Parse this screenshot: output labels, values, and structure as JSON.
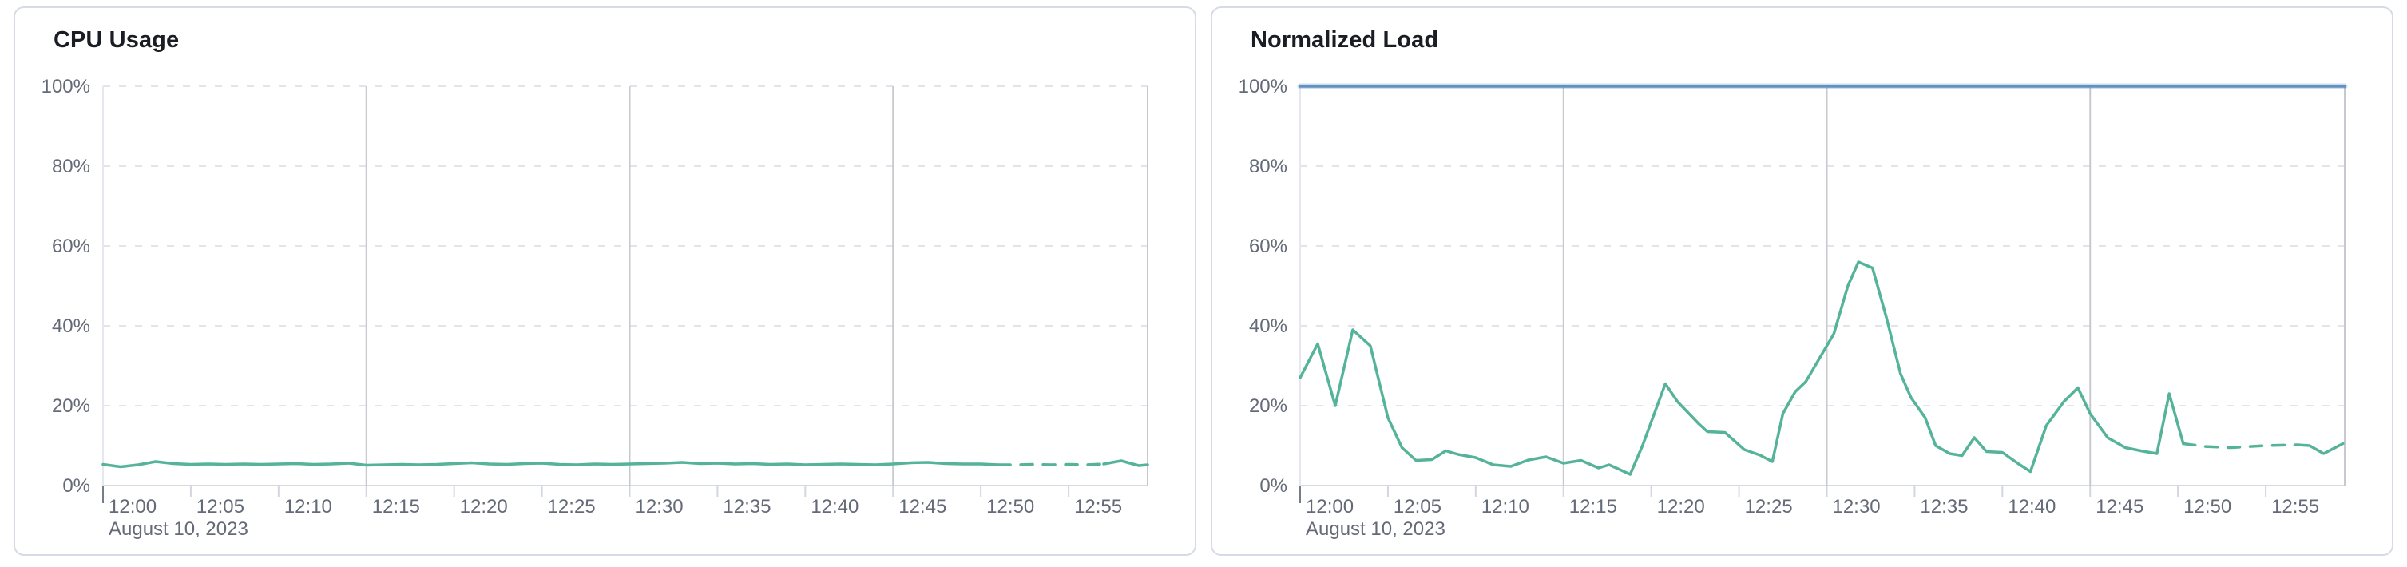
{
  "panels": [
    {
      "title": "CPU Usage"
    },
    {
      "title": "Normalized Load"
    }
  ],
  "chart_data": [
    {
      "type": "line",
      "title": "CPU Usage",
      "date_label": "August 10, 2023",
      "x_domain_minutes": [
        0,
        59.5
      ],
      "x_tick_minutes": [
        0,
        5,
        10,
        15,
        20,
        25,
        30,
        35,
        40,
        45,
        50,
        55
      ],
      "x_tick_labels": [
        "12:00",
        "12:05",
        "12:10",
        "12:15",
        "12:20",
        "12:25",
        "12:30",
        "12:35",
        "12:40",
        "12:45",
        "12:50",
        "12:55"
      ],
      "grid_vertical_minutes": [
        15,
        30,
        45
      ],
      "ylim": [
        0,
        100
      ],
      "y_ticks": [
        0,
        20,
        40,
        60,
        80,
        100
      ],
      "y_tick_suffix": "%",
      "grid": true,
      "legend": "none",
      "series": [
        {
          "name": "cpu-usage",
          "color": "#54b399",
          "dashed_from_minute": 51,
          "dashed_to_minute": 57,
          "points": [
            [
              0,
              5.3
            ],
            [
              1,
              4.7
            ],
            [
              2,
              5.2
            ],
            [
              3,
              6.0
            ],
            [
              4,
              5.5
            ],
            [
              5,
              5.3
            ],
            [
              6,
              5.4
            ],
            [
              7,
              5.3
            ],
            [
              8,
              5.4
            ],
            [
              9,
              5.3
            ],
            [
              10,
              5.4
            ],
            [
              11,
              5.5
            ],
            [
              12,
              5.3
            ],
            [
              13,
              5.4
            ],
            [
              14,
              5.6
            ],
            [
              15,
              5.1
            ],
            [
              16,
              5.2
            ],
            [
              17,
              5.3
            ],
            [
              18,
              5.2
            ],
            [
              19,
              5.3
            ],
            [
              20,
              5.5
            ],
            [
              21,
              5.7
            ],
            [
              22,
              5.4
            ],
            [
              23,
              5.3
            ],
            [
              24,
              5.5
            ],
            [
              25,
              5.6
            ],
            [
              26,
              5.3
            ],
            [
              27,
              5.2
            ],
            [
              28,
              5.4
            ],
            [
              29,
              5.3
            ],
            [
              30,
              5.4
            ],
            [
              31,
              5.5
            ],
            [
              32,
              5.6
            ],
            [
              33,
              5.8
            ],
            [
              34,
              5.5
            ],
            [
              35,
              5.6
            ],
            [
              36,
              5.4
            ],
            [
              37,
              5.5
            ],
            [
              38,
              5.3
            ],
            [
              39,
              5.4
            ],
            [
              40,
              5.2
            ],
            [
              41,
              5.3
            ],
            [
              42,
              5.4
            ],
            [
              43,
              5.3
            ],
            [
              44,
              5.2
            ],
            [
              45,
              5.4
            ],
            [
              46,
              5.7
            ],
            [
              47,
              5.8
            ],
            [
              48,
              5.5
            ],
            [
              49,
              5.4
            ],
            [
              50,
              5.4
            ],
            [
              51,
              5.2
            ],
            [
              52,
              5.2
            ],
            [
              53,
              5.3
            ],
            [
              54,
              5.2
            ],
            [
              55,
              5.3
            ],
            [
              56,
              5.2
            ],
            [
              57,
              5.4
            ],
            [
              58,
              6.2
            ],
            [
              59,
              5.0
            ],
            [
              59.5,
              5.2
            ]
          ]
        }
      ]
    },
    {
      "type": "line",
      "title": "Normalized Load",
      "date_label": "August 10, 2023",
      "x_domain_minutes": [
        0,
        59.5
      ],
      "x_tick_minutes": [
        0,
        5,
        10,
        15,
        20,
        25,
        30,
        35,
        40,
        45,
        50,
        55
      ],
      "x_tick_labels": [
        "12:00",
        "12:05",
        "12:10",
        "12:15",
        "12:20",
        "12:25",
        "12:30",
        "12:35",
        "12:40",
        "12:45",
        "12:50",
        "12:55"
      ],
      "grid_vertical_minutes": [
        15,
        30,
        45
      ],
      "ylim": [
        0,
        100
      ],
      "y_ticks": [
        0,
        20,
        40,
        60,
        80,
        100
      ],
      "y_tick_suffix": "%",
      "grid": true,
      "legend": "none",
      "series": [
        {
          "name": "load-limit",
          "color": "#6092c0",
          "halo": true,
          "points": [
            [
              0,
              100
            ],
            [
              59.5,
              100
            ]
          ]
        },
        {
          "name": "normalized-load",
          "color": "#54b399",
          "dashed_from_minute": 50.3,
          "dashed_to_minute": 56.8,
          "points": [
            [
              0,
              27
            ],
            [
              1,
              35.5
            ],
            [
              2,
              20
            ],
            [
              3,
              39
            ],
            [
              4,
              35
            ],
            [
              5,
              17
            ],
            [
              5.8,
              9.5
            ],
            [
              6.6,
              6.3
            ],
            [
              7.5,
              6.5
            ],
            [
              8.3,
              8.7
            ],
            [
              9,
              7.8
            ],
            [
              10,
              7
            ],
            [
              11,
              5.2
            ],
            [
              12,
              4.8
            ],
            [
              13,
              6.4
            ],
            [
              14,
              7.2
            ],
            [
              15,
              5.6
            ],
            [
              16,
              6.3
            ],
            [
              17,
              4.4
            ],
            [
              17.6,
              5.2
            ],
            [
              18.8,
              2.8
            ],
            [
              19.5,
              10
            ],
            [
              20.8,
              25.5
            ],
            [
              21.5,
              21
            ],
            [
              22.7,
              15.5
            ],
            [
              23.2,
              13.5
            ],
            [
              24.2,
              13.3
            ],
            [
              25.3,
              9
            ],
            [
              26.2,
              7.6
            ],
            [
              26.9,
              6
            ],
            [
              27.5,
              18
            ],
            [
              28.2,
              23.5
            ],
            [
              28.8,
              26
            ],
            [
              29.6,
              32
            ],
            [
              30.4,
              38
            ],
            [
              31.2,
              50
            ],
            [
              31.8,
              56
            ],
            [
              32.6,
              54.5
            ],
            [
              33.4,
              42
            ],
            [
              34.2,
              28
            ],
            [
              34.8,
              22
            ],
            [
              35.6,
              17
            ],
            [
              36.2,
              10
            ],
            [
              37,
              8
            ],
            [
              37.7,
              7.5
            ],
            [
              38.4,
              12
            ],
            [
              39.1,
              8.5
            ],
            [
              40,
              8.3
            ],
            [
              40.9,
              5.5
            ],
            [
              41.6,
              3.5
            ],
            [
              42.5,
              15
            ],
            [
              43.5,
              21
            ],
            [
              44.3,
              24.5
            ],
            [
              45,
              18
            ],
            [
              46,
              12
            ],
            [
              47,
              9.5
            ],
            [
              48,
              8.6
            ],
            [
              48.8,
              8
            ],
            [
              49.5,
              23
            ],
            [
              50.3,
              10.5
            ],
            [
              51.5,
              9.8
            ],
            [
              53,
              9.5
            ],
            [
              55,
              10
            ],
            [
              56.8,
              10.2
            ],
            [
              57.5,
              10
            ],
            [
              58.3,
              8
            ],
            [
              59.4,
              10.5
            ]
          ]
        }
      ]
    }
  ]
}
